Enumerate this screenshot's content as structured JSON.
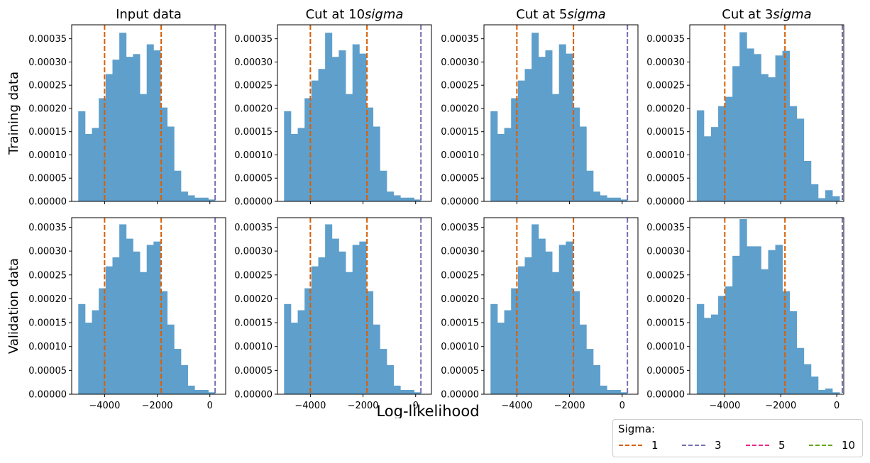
{
  "chart_data": {
    "type": "bar",
    "xlabel": "Log-likelihood",
    "row_labels": [
      "Training data",
      "Validation data"
    ],
    "column_titles": [
      {
        "prefix": "Input data",
        "italic": ""
      },
      {
        "prefix": "Cut at 10",
        "italic": "sigma"
      },
      {
        "prefix": "Cut at 5",
        "italic": "sigma"
      },
      {
        "prefix": "Cut at 3",
        "italic": "sigma"
      }
    ],
    "xlim": [
      -5250,
      600
    ],
    "xlim_3sigma": [
      -5250,
      250
    ],
    "ylim_train": [
      0,
      0.00038
    ],
    "ylim_valid": [
      0,
      0.00037
    ],
    "xticks": [
      -4000,
      -2000,
      0
    ],
    "xtick_labels": [
      "−4000",
      "−2000",
      "0"
    ],
    "yticks": [
      0,
      5e-05,
      0.0001,
      0.00015,
      0.0002,
      0.00025,
      0.0003,
      0.00035
    ],
    "ytick_labels": [
      "0.00000",
      "0.00005",
      "0.00010",
      "0.00015",
      "0.00020",
      "0.00025",
      "0.00030",
      "0.00035"
    ],
    "bar_color": "#5f9fcb",
    "vlines": [
      {
        "x": -4000,
        "sigma": "1",
        "color": "#d95f02"
      },
      {
        "x": -1850,
        "sigma": "1",
        "color": "#d95f02"
      },
      {
        "x": 200,
        "sigma": "3",
        "color": "#7570b3"
      }
    ],
    "panels": [
      {
        "row": 0,
        "col": 0,
        "bin_start": -5000,
        "bin_width": 260,
        "values": [
          0.000194,
          0.000145,
          0.000158,
          0.000222,
          0.000274,
          0.000305,
          0.000363,
          0.000311,
          0.000317,
          0.000231,
          0.000338,
          0.000325,
          0.000202,
          0.000161,
          6.6e-05,
          2.1e-05,
          1.3e-05,
          8e-06,
          8e-06,
          4e-06
        ]
      },
      {
        "row": 0,
        "col": 1,
        "bin_start": -5000,
        "bin_width": 260,
        "values": [
          0.000194,
          0.000145,
          0.000158,
          0.000222,
          0.00026,
          0.000285,
          0.000363,
          0.000311,
          0.000325,
          0.000231,
          0.000338,
          0.000318,
          0.000202,
          0.000161,
          6.6e-05,
          2.1e-05,
          1.3e-05,
          8e-06,
          8e-06,
          4e-06
        ]
      },
      {
        "row": 0,
        "col": 2,
        "bin_start": -5000,
        "bin_width": 260,
        "values": [
          0.000194,
          0.000145,
          0.000158,
          0.000222,
          0.00026,
          0.000285,
          0.000363,
          0.000311,
          0.000325,
          0.000231,
          0.000338,
          0.000318,
          0.000202,
          0.000161,
          6.6e-05,
          2.1e-05,
          1.3e-05,
          8e-06,
          8e-06,
          4e-06
        ]
      },
      {
        "row": 0,
        "col": 3,
        "bin_start": -5000,
        "bin_width": 255,
        "values": [
          0.000196,
          0.00014,
          0.00016,
          0.000205,
          0.000225,
          0.000291,
          0.000364,
          0.000329,
          0.000317,
          0.000274,
          0.000267,
          0.000314,
          0.000324,
          0.000205,
          0.000178,
          8.7e-05,
          3.7e-05,
          7e-06,
          2.4e-05,
          1.1e-05
        ]
      },
      {
        "row": 1,
        "col": 0,
        "bin_start": -5000,
        "bin_width": 260,
        "values": [
          0.000189,
          0.00015,
          0.000176,
          0.000222,
          0.000268,
          0.000287,
          0.000356,
          0.000326,
          0.000299,
          0.000256,
          0.000313,
          0.00032,
          0.000216,
          0.000146,
          9.5e-05,
          6.1e-05,
          1.8e-05,
          9e-06,
          9e-06,
          4e-06
        ]
      },
      {
        "row": 1,
        "col": 1,
        "bin_start": -5000,
        "bin_width": 260,
        "values": [
          0.000189,
          0.00015,
          0.000176,
          0.000222,
          0.000268,
          0.000287,
          0.000356,
          0.000326,
          0.000299,
          0.000256,
          0.000313,
          0.00032,
          0.000216,
          0.000146,
          9.5e-05,
          6.1e-05,
          1.8e-05,
          9e-06,
          9e-06,
          4e-06
        ]
      },
      {
        "row": 1,
        "col": 2,
        "bin_start": -5000,
        "bin_width": 260,
        "values": [
          0.000189,
          0.00015,
          0.000176,
          0.000222,
          0.000268,
          0.000287,
          0.000356,
          0.000326,
          0.000299,
          0.000256,
          0.000313,
          0.00032,
          0.000216,
          0.000146,
          9.5e-05,
          6.1e-05,
          1.8e-05,
          9e-06,
          9e-06,
          4e-06
        ]
      },
      {
        "row": 1,
        "col": 3,
        "bin_start": -5000,
        "bin_width": 255,
        "values": [
          0.000189,
          0.00016,
          0.000167,
          0.000206,
          0.000226,
          0.00029,
          0.000367,
          0.00031,
          0.00031,
          0.000262,
          0.000302,
          0.000313,
          0.000216,
          0.000174,
          9.7e-05,
          6.3e-05,
          3.7e-05,
          9e-06,
          1.2e-05,
          4e-06
        ]
      }
    ],
    "legend": {
      "title": "Sigma:",
      "entries": [
        {
          "label": "1",
          "color": "#d95f02"
        },
        {
          "label": "3",
          "color": "#7570b3"
        },
        {
          "label": "5",
          "color": "#e7298a"
        },
        {
          "label": "10",
          "color": "#66a61e"
        }
      ]
    }
  }
}
